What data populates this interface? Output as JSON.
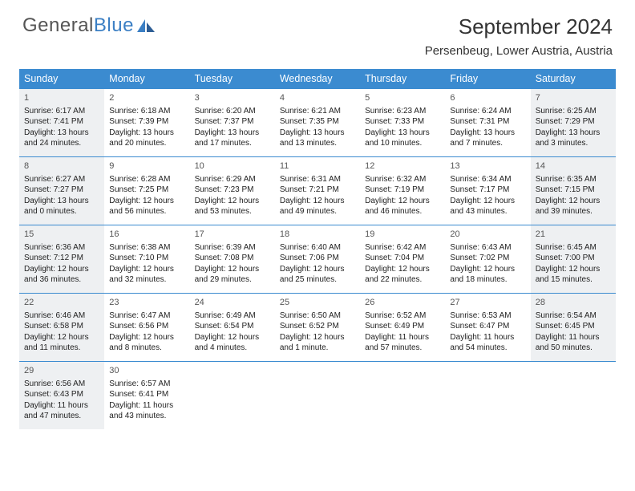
{
  "brand": {
    "part1": "General",
    "part2": "Blue"
  },
  "title": "September 2024",
  "location": "Persenbeug, Lower Austria, Austria",
  "colors": {
    "header_bg": "#3b8bd0",
    "week_border": "#3b8bd0",
    "shade_bg": "#eef0f2"
  },
  "fonts": {
    "title_size": 26,
    "location_size": 15,
    "dayhead_size": 12.5,
    "cell_size": 10
  },
  "day_names": [
    "Sunday",
    "Monday",
    "Tuesday",
    "Wednesday",
    "Thursday",
    "Friday",
    "Saturday"
  ],
  "weeks": [
    [
      {
        "n": "1",
        "sr": "6:17 AM",
        "ss": "7:41 PM",
        "dl": "13 hours and 24 minutes.",
        "shade": true
      },
      {
        "n": "2",
        "sr": "6:18 AM",
        "ss": "7:39 PM",
        "dl": "13 hours and 20 minutes.",
        "shade": false
      },
      {
        "n": "3",
        "sr": "6:20 AM",
        "ss": "7:37 PM",
        "dl": "13 hours and 17 minutes.",
        "shade": false
      },
      {
        "n": "4",
        "sr": "6:21 AM",
        "ss": "7:35 PM",
        "dl": "13 hours and 13 minutes.",
        "shade": false
      },
      {
        "n": "5",
        "sr": "6:23 AM",
        "ss": "7:33 PM",
        "dl": "13 hours and 10 minutes.",
        "shade": false
      },
      {
        "n": "6",
        "sr": "6:24 AM",
        "ss": "7:31 PM",
        "dl": "13 hours and 7 minutes.",
        "shade": false
      },
      {
        "n": "7",
        "sr": "6:25 AM",
        "ss": "7:29 PM",
        "dl": "13 hours and 3 minutes.",
        "shade": true
      }
    ],
    [
      {
        "n": "8",
        "sr": "6:27 AM",
        "ss": "7:27 PM",
        "dl": "13 hours and 0 minutes.",
        "shade": true
      },
      {
        "n": "9",
        "sr": "6:28 AM",
        "ss": "7:25 PM",
        "dl": "12 hours and 56 minutes.",
        "shade": false
      },
      {
        "n": "10",
        "sr": "6:29 AM",
        "ss": "7:23 PM",
        "dl": "12 hours and 53 minutes.",
        "shade": false
      },
      {
        "n": "11",
        "sr": "6:31 AM",
        "ss": "7:21 PM",
        "dl": "12 hours and 49 minutes.",
        "shade": false
      },
      {
        "n": "12",
        "sr": "6:32 AM",
        "ss": "7:19 PM",
        "dl": "12 hours and 46 minutes.",
        "shade": false
      },
      {
        "n": "13",
        "sr": "6:34 AM",
        "ss": "7:17 PM",
        "dl": "12 hours and 43 minutes.",
        "shade": false
      },
      {
        "n": "14",
        "sr": "6:35 AM",
        "ss": "7:15 PM",
        "dl": "12 hours and 39 minutes.",
        "shade": true
      }
    ],
    [
      {
        "n": "15",
        "sr": "6:36 AM",
        "ss": "7:12 PM",
        "dl": "12 hours and 36 minutes.",
        "shade": true
      },
      {
        "n": "16",
        "sr": "6:38 AM",
        "ss": "7:10 PM",
        "dl": "12 hours and 32 minutes.",
        "shade": false
      },
      {
        "n": "17",
        "sr": "6:39 AM",
        "ss": "7:08 PM",
        "dl": "12 hours and 29 minutes.",
        "shade": false
      },
      {
        "n": "18",
        "sr": "6:40 AM",
        "ss": "7:06 PM",
        "dl": "12 hours and 25 minutes.",
        "shade": false
      },
      {
        "n": "19",
        "sr": "6:42 AM",
        "ss": "7:04 PM",
        "dl": "12 hours and 22 minutes.",
        "shade": false
      },
      {
        "n": "20",
        "sr": "6:43 AM",
        "ss": "7:02 PM",
        "dl": "12 hours and 18 minutes.",
        "shade": false
      },
      {
        "n": "21",
        "sr": "6:45 AM",
        "ss": "7:00 PM",
        "dl": "12 hours and 15 minutes.",
        "shade": true
      }
    ],
    [
      {
        "n": "22",
        "sr": "6:46 AM",
        "ss": "6:58 PM",
        "dl": "12 hours and 11 minutes.",
        "shade": true
      },
      {
        "n": "23",
        "sr": "6:47 AM",
        "ss": "6:56 PM",
        "dl": "12 hours and 8 minutes.",
        "shade": false
      },
      {
        "n": "24",
        "sr": "6:49 AM",
        "ss": "6:54 PM",
        "dl": "12 hours and 4 minutes.",
        "shade": false
      },
      {
        "n": "25",
        "sr": "6:50 AM",
        "ss": "6:52 PM",
        "dl": "12 hours and 1 minute.",
        "shade": false
      },
      {
        "n": "26",
        "sr": "6:52 AM",
        "ss": "6:49 PM",
        "dl": "11 hours and 57 minutes.",
        "shade": false
      },
      {
        "n": "27",
        "sr": "6:53 AM",
        "ss": "6:47 PM",
        "dl": "11 hours and 54 minutes.",
        "shade": false
      },
      {
        "n": "28",
        "sr": "6:54 AM",
        "ss": "6:45 PM",
        "dl": "11 hours and 50 minutes.",
        "shade": true
      }
    ],
    [
      {
        "n": "29",
        "sr": "6:56 AM",
        "ss": "6:43 PM",
        "dl": "11 hours and 47 minutes.",
        "shade": true
      },
      {
        "n": "30",
        "sr": "6:57 AM",
        "ss": "6:41 PM",
        "dl": "11 hours and 43 minutes.",
        "shade": false
      },
      null,
      null,
      null,
      null,
      null
    ]
  ],
  "labels": {
    "sunrise": "Sunrise:",
    "sunset": "Sunset:",
    "daylight": "Daylight:"
  }
}
